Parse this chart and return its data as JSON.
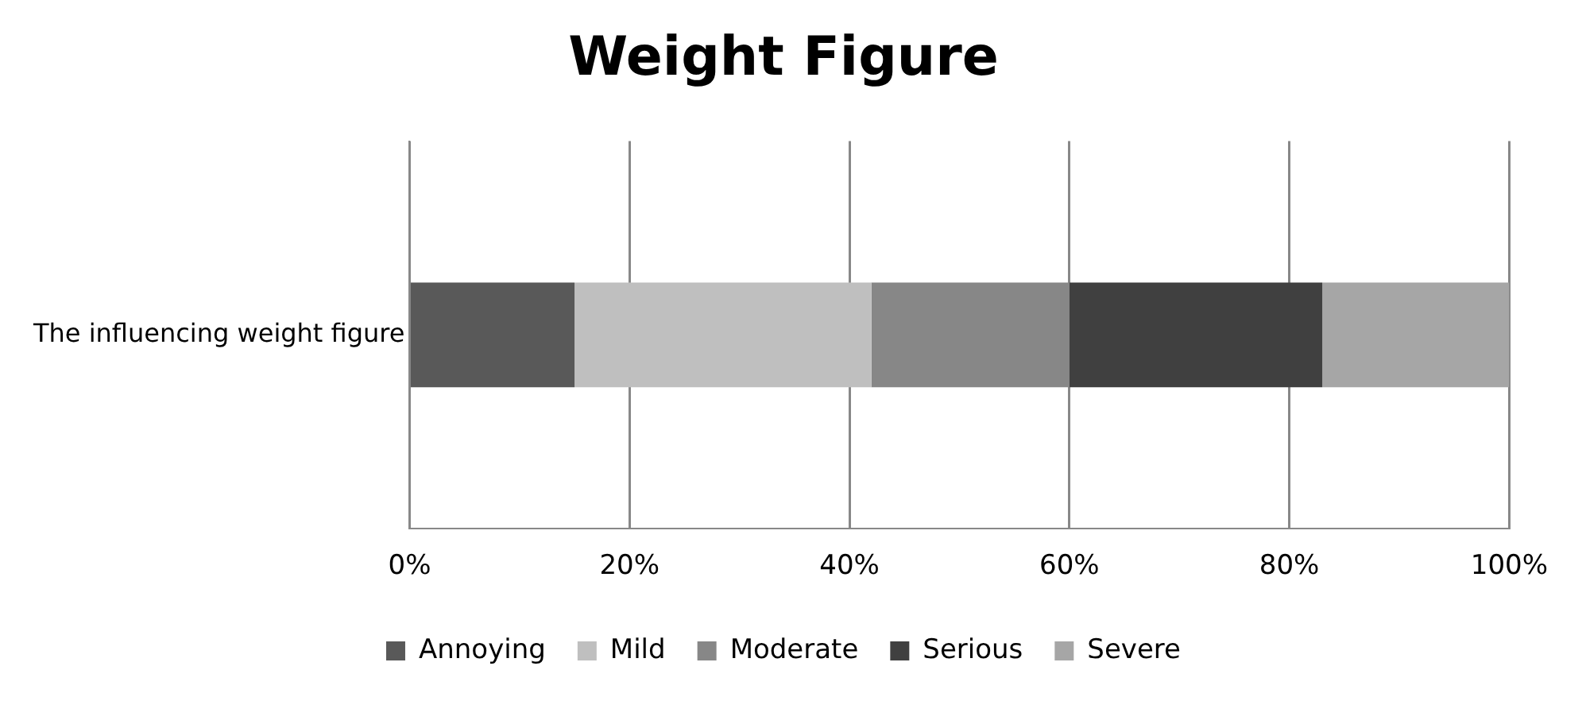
{
  "chart_data": {
    "type": "bar",
    "title": "Weight Figure",
    "orientation": "horizontal",
    "stacked": true,
    "categories": [
      "The influencing weight figure"
    ],
    "series": [
      {
        "name": "Annoying",
        "color": "#595959",
        "values": [
          15
        ]
      },
      {
        "name": "Mild",
        "color": "#bfbfbf",
        "values": [
          27
        ]
      },
      {
        "name": "Moderate",
        "color": "#878787",
        "values": [
          18
        ]
      },
      {
        "name": "Serious",
        "color": "#404040",
        "values": [
          23
        ]
      },
      {
        "name": "Severe",
        "color": "#a6a6a6",
        "values": [
          17
        ]
      }
    ],
    "xlim": [
      0,
      100
    ],
    "xticks": [
      {
        "value": 0,
        "label": "0%"
      },
      {
        "value": 20,
        "label": "20%"
      },
      {
        "value": 40,
        "label": "40%"
      },
      {
        "value": 60,
        "label": "60%"
      },
      {
        "value": 80,
        "label": "80%"
      },
      {
        "value": 100,
        "label": "100%"
      }
    ],
    "grid": "x",
    "legend": "bottom"
  }
}
